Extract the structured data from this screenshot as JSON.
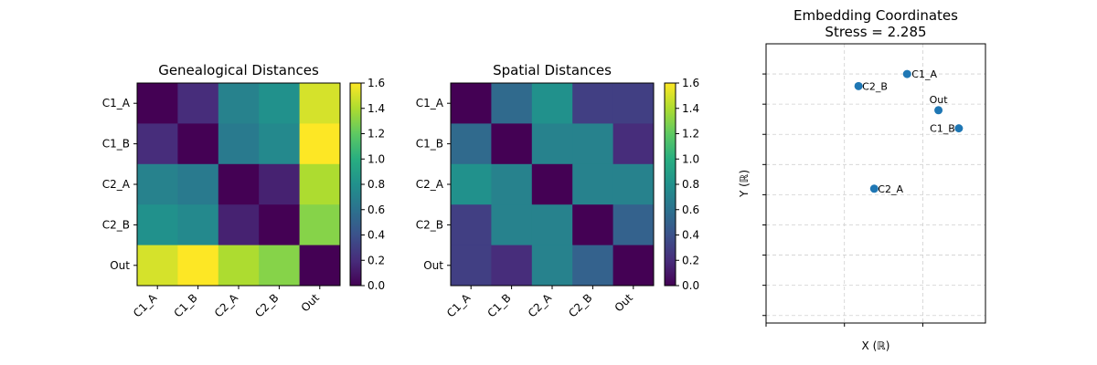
{
  "chart_data": [
    {
      "type": "heatmap",
      "title": "Genealogical Distances",
      "labels": [
        "C1_A",
        "C1_B",
        "C2_A",
        "C2_B",
        "Out"
      ],
      "values": [
        [
          0.0,
          0.2,
          0.7,
          0.8,
          1.5
        ],
        [
          0.2,
          0.0,
          0.65,
          0.75,
          1.6
        ],
        [
          0.7,
          0.65,
          0.0,
          0.15,
          1.4
        ],
        [
          0.8,
          0.75,
          0.15,
          0.0,
          1.3
        ],
        [
          1.5,
          1.6,
          1.4,
          1.3,
          0.0
        ]
      ],
      "colorbar": {
        "range": [
          0,
          1.6
        ],
        "ticks": [
          "0.0",
          "0.2",
          "0.4",
          "0.6",
          "0.8",
          "1.0",
          "1.2",
          "1.4",
          "1.6"
        ],
        "colormap": "viridis"
      }
    },
    {
      "type": "heatmap",
      "title": "Spatial Distances",
      "labels": [
        "C1_A",
        "C1_B",
        "C2_A",
        "C2_B",
        "Out"
      ],
      "values": [
        [
          0.0,
          0.55,
          0.8,
          0.3,
          0.3
        ],
        [
          0.55,
          0.0,
          0.7,
          0.7,
          0.2
        ],
        [
          0.8,
          0.7,
          0.0,
          0.7,
          0.7
        ],
        [
          0.3,
          0.7,
          0.7,
          0.0,
          0.5
        ],
        [
          0.3,
          0.2,
          0.7,
          0.5,
          0.0
        ]
      ],
      "colorbar": {
        "range": [
          0,
          1.6
        ],
        "ticks": [
          "0.0",
          "0.2",
          "0.4",
          "0.6",
          "0.8",
          "1.0",
          "1.2",
          "1.4",
          "1.6"
        ],
        "colormap": "viridis"
      }
    },
    {
      "type": "scatter",
      "title_line1": "Embedding Coordinates",
      "title_line2": "Stress = 2.285",
      "xlabel": "X (ℝ)",
      "ylabel": "Y (ℝ)",
      "xlim": [
        -1.0,
        1.8
      ],
      "ylim": [
        -0.85,
        1.0
      ],
      "grid": true,
      "tick_labels_shown": false,
      "point_color": "#1f77b4",
      "points": [
        {
          "label": "C1_A",
          "x": 0.8,
          "y": 0.8
        },
        {
          "label": "C2_B",
          "x": 0.18,
          "y": 0.72
        },
        {
          "label": "Out",
          "x": 1.2,
          "y": 0.56
        },
        {
          "label": "C1_B",
          "x": 1.46,
          "y": 0.44
        },
        {
          "label": "C2_A",
          "x": 0.38,
          "y": 0.04
        }
      ]
    }
  ]
}
